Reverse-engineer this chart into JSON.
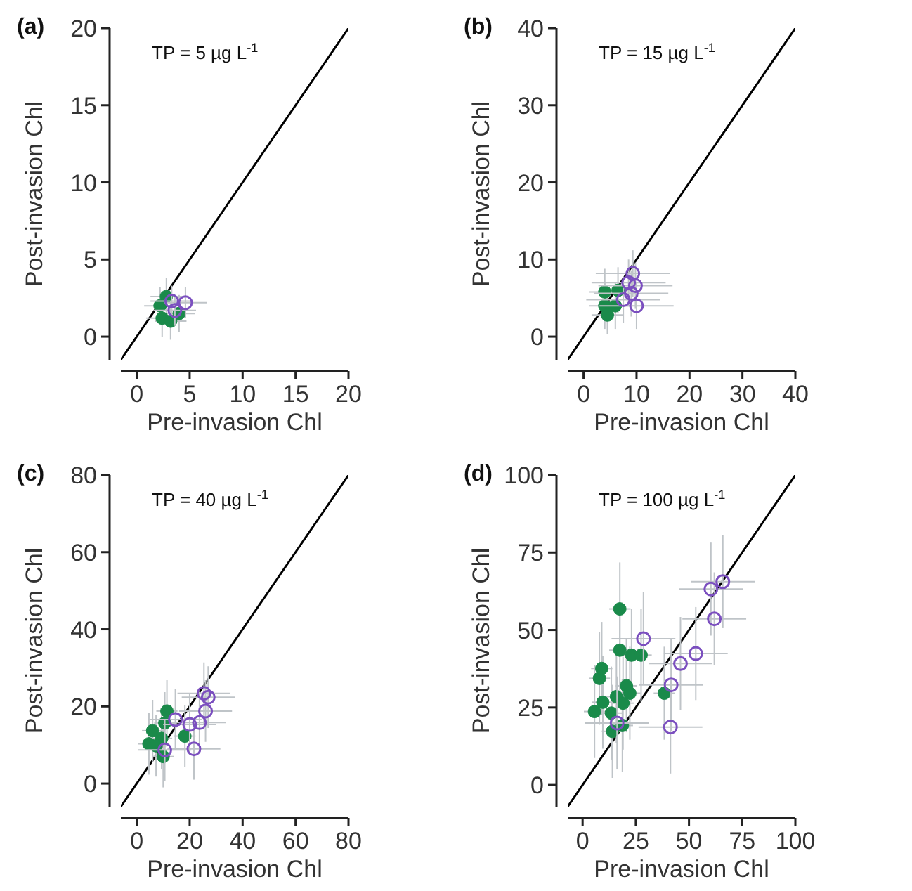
{
  "chart_data": [
    {
      "type": "scatter",
      "title": "(a)",
      "annotations": [
        "TP = 5 µg L$^{-1}$"
      ],
      "xlabel": "Pre-invasion Chl",
      "ylabel": "Post-invasion Chl",
      "xlim": [
        -1.5,
        20
      ],
      "ylim": [
        -1.5,
        20
      ],
      "xticks": [
        0,
        5,
        10,
        15,
        20
      ],
      "yticks": [
        0,
        5,
        10,
        15,
        20
      ],
      "series": [
        {
          "type": "line",
          "color": "#000000",
          "x": [
            -1.5,
            20
          ],
          "values": [
            -1.5,
            20
          ]
        },
        {
          "marker": "circle",
          "color": "#1a8a4a",
          "x": [
            2.2,
            2.8,
            2.4,
            3.2,
            4.0
          ],
          "values": [
            2.0,
            2.6,
            1.2,
            1.0,
            1.5
          ],
          "errors": [
            1.2,
            1.2,
            1.2,
            1.2,
            1.2
          ],
          "xerrors": [
            1.5,
            1.5,
            1.5,
            1.5,
            1.5
          ]
        },
        {
          "marker": "circle",
          "color": "#7b4fbf",
          "x": [
            3.3,
            4.6,
            3.6
          ],
          "values": [
            2.3,
            2.2,
            1.7
          ],
          "errors": [
            1,
            1,
            1
          ],
          "xerrors": [
            2,
            2,
            2
          ]
        }
      ]
    },
    {
      "type": "scatter",
      "title": "(b)",
      "annotations": [
        "TP = 15 µg L$^{-1}$"
      ],
      "xlabel": "Pre-invasion Chl",
      "ylabel": "Post-invasion Chl",
      "xlim": [
        -3,
        40
      ],
      "ylim": [
        -3,
        40
      ],
      "xticks": [
        0,
        10,
        20,
        30,
        40
      ],
      "yticks": [
        0,
        10,
        20,
        30,
        40
      ],
      "series": [
        {
          "type": "line",
          "color": "#000000",
          "x": [
            -3,
            40
          ],
          "values": [
            -3,
            40
          ]
        },
        {
          "marker": "circle",
          "color": "#1a8a4a",
          "x": [
            4,
            4.5,
            6,
            6.5,
            4
          ],
          "values": [
            4,
            2.8,
            4,
            6,
            5.8
          ],
          "errors": [
            3,
            2.5,
            3,
            3,
            3
          ],
          "xerrors": [
            3,
            3,
            3,
            3,
            3
          ]
        },
        {
          "marker": "circle",
          "color": "#7b4fbf",
          "x": [
            7.5,
            8.5,
            9.3,
            9,
            9.8,
            10
          ],
          "values": [
            4.8,
            7,
            8.2,
            5.6,
            6.6,
            4
          ],
          "errors": [
            3,
            3,
            3,
            3,
            3,
            3
          ],
          "xerrors": [
            7,
            7,
            7,
            7,
            7,
            7
          ]
        }
      ]
    },
    {
      "type": "scatter",
      "title": "(c)",
      "annotations": [
        "TP = 40 µg L$^{-1}$"
      ],
      "xlabel": "Pre-invasion Chl",
      "ylabel": "Post-invasion Chl",
      "xlim": [
        -6,
        80
      ],
      "ylim": [
        -6,
        80
      ],
      "xticks": [
        0,
        20,
        40,
        60,
        80
      ],
      "yticks": [
        0,
        20,
        40,
        60,
        80
      ],
      "series": [
        {
          "type": "line",
          "color": "#000000",
          "x": [
            -6,
            80
          ],
          "values": [
            -6,
            80
          ]
        },
        {
          "marker": "circle",
          "color": "#1a8a4a",
          "x": [
            6,
            4.6,
            11.4,
            10.6,
            9.4,
            10,
            7.3,
            18.2
          ],
          "values": [
            13.7,
            10.3,
            18.8,
            15.7,
            11.7,
            7,
            9.8,
            12.3
          ],
          "errors": [
            8,
            8,
            8,
            8,
            8,
            8,
            8,
            8
          ],
          "xerrors": [
            4,
            4,
            4,
            4,
            4,
            4,
            4,
            4
          ]
        },
        {
          "marker": "circle",
          "color": "#7b4fbf",
          "x": [
            14.6,
            10.6,
            20,
            21.6,
            23.7,
            26,
            25.4,
            27
          ],
          "values": [
            16.6,
            8.7,
            15.3,
            9,
            15.8,
            18.8,
            23.4,
            22.4
          ],
          "errors": [
            8,
            8,
            8,
            8,
            8,
            8,
            8,
            8
          ],
          "xerrors": [
            10,
            10,
            10,
            10,
            10,
            10,
            10,
            10
          ]
        }
      ]
    },
    {
      "type": "scatter",
      "title": "(d)",
      "annotations": [
        "TP = 100 µg L$^{-1}$"
      ],
      "xlabel": "Pre-invasion Chl",
      "ylabel": "Post-invasion Chl",
      "xlim": [
        -7,
        100
      ],
      "ylim": [
        -7,
        100
      ],
      "xticks": [
        0,
        25,
        50,
        75,
        100
      ],
      "yticks": [
        0,
        25,
        50,
        75,
        100
      ],
      "series": [
        {
          "type": "line",
          "color": "#000000",
          "x": [
            -7,
            100
          ],
          "values": [
            -7,
            100
          ]
        },
        {
          "marker": "circle",
          "color": "#1a8a4a",
          "x": [
            5.6,
            7.9,
            9,
            9.5,
            13.5,
            14,
            15.9,
            17.5,
            17.5,
            18.7,
            19,
            20.6,
            22.2,
            23,
            27.5,
            38.4
          ],
          "values": [
            23.7,
            34.4,
            37.6,
            26.7,
            23.2,
            17.3,
            28.5,
            56.8,
            43.5,
            19.2,
            26.4,
            32,
            29.6,
            41.9,
            41.9,
            29.6
          ],
          "errors": [
            15,
            15,
            15,
            15,
            15,
            15,
            15,
            15,
            15,
            15,
            15,
            15,
            15,
            15,
            15,
            15
          ],
          "xerrors": [
            5,
            5,
            5,
            5,
            5,
            5,
            5,
            5,
            5,
            5,
            5,
            5,
            5,
            5,
            5,
            5
          ]
        },
        {
          "marker": "circle",
          "color": "#7b4fbf",
          "x": [
            16.2,
            28.6,
            41.6,
            41.3,
            46,
            53.2,
            60.3,
            61.9,
            65.9
          ],
          "values": [
            20,
            47.2,
            32.3,
            18.7,
            39.2,
            42.4,
            63.2,
            53.6,
            65.6
          ],
          "errors": [
            15,
            15,
            15,
            15,
            15,
            15,
            15,
            15,
            15
          ],
          "xerrors": [
            15,
            15,
            15,
            15,
            15,
            15,
            15,
            15,
            15
          ]
        }
      ]
    }
  ]
}
